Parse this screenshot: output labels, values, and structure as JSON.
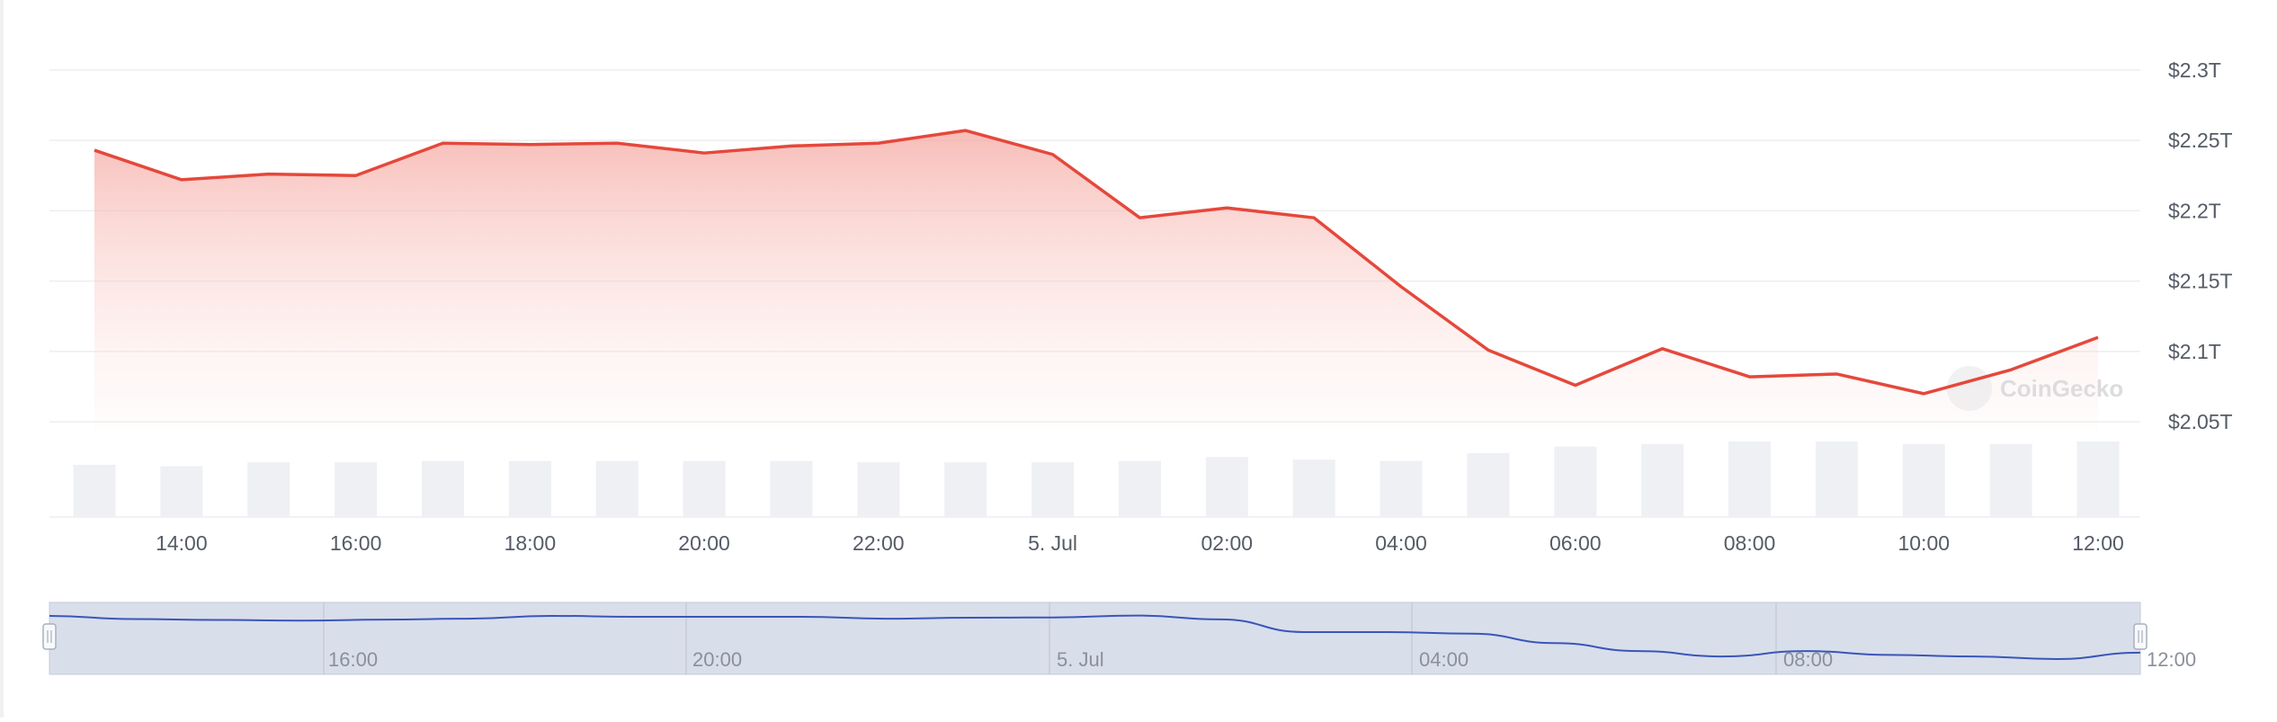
{
  "chart_data": {
    "type": "area",
    "x": [
      "13:00",
      "14:00",
      "15:00",
      "16:00",
      "17:00",
      "18:00",
      "19:00",
      "20:00",
      "21:00",
      "22:00",
      "23:00",
      "5. Jul 00:00",
      "01:00",
      "02:00",
      "03:00",
      "04:00",
      "05:00",
      "06:00",
      "07:00",
      "08:00",
      "09:00",
      "10:00",
      "11:00",
      "12:00"
    ],
    "series": [
      {
        "values": [
          2.243,
          2.222,
          2.226,
          2.225,
          2.248,
          2.247,
          2.248,
          2.241,
          2.246,
          2.248,
          2.257,
          2.24,
          2.195,
          2.202,
          2.195,
          2.146,
          2.101,
          2.076,
          2.102,
          2.082,
          2.084,
          2.07,
          2.087,
          2.11
        ]
      }
    ],
    "volume": [
      40,
      39,
      42,
      42,
      43,
      43,
      43,
      43,
      43,
      42,
      42,
      42,
      43,
      46,
      44,
      43,
      49,
      54,
      56,
      58,
      58,
      56,
      56,
      58
    ],
    "y_tick_labels": [
      "$2.3T",
      "$2.25T",
      "$2.2T",
      "$2.15T",
      "$2.1T",
      "$2.05T"
    ],
    "y_ticks": [
      2.3,
      2.25,
      2.2,
      2.15,
      2.1,
      2.05
    ],
    "ylim": [
      2.045,
      2.305
    ],
    "x_tick_labels": [
      "14:00",
      "16:00",
      "18:00",
      "20:00",
      "22:00",
      "5. Jul",
      "02:00",
      "04:00",
      "06:00",
      "08:00",
      "10:00",
      "12:00"
    ],
    "navigator_labels": [
      "16:00",
      "20:00",
      "5. Jul",
      "04:00",
      "08:00",
      "12:00"
    ],
    "navigator_values": [
      2.256,
      2.246,
      2.243,
      2.241,
      2.244,
      2.247,
      2.256,
      2.253,
      2.253,
      2.253,
      2.247,
      2.25,
      2.251,
      2.257,
      2.245,
      2.205,
      2.205,
      2.2,
      2.17,
      2.145,
      2.128,
      2.145,
      2.133,
      2.128,
      2.12,
      2.14
    ],
    "watermark": "CoinGecko",
    "grid": true,
    "colors": {
      "line": "#e5483b",
      "area_top": "#f5a7a0",
      "volume": "#eef0f4",
      "grid": "#eceef1",
      "navigator_fill": "#d9deeb",
      "navigator_line": "#3a56b8",
      "axis_text": "#555b66"
    }
  }
}
